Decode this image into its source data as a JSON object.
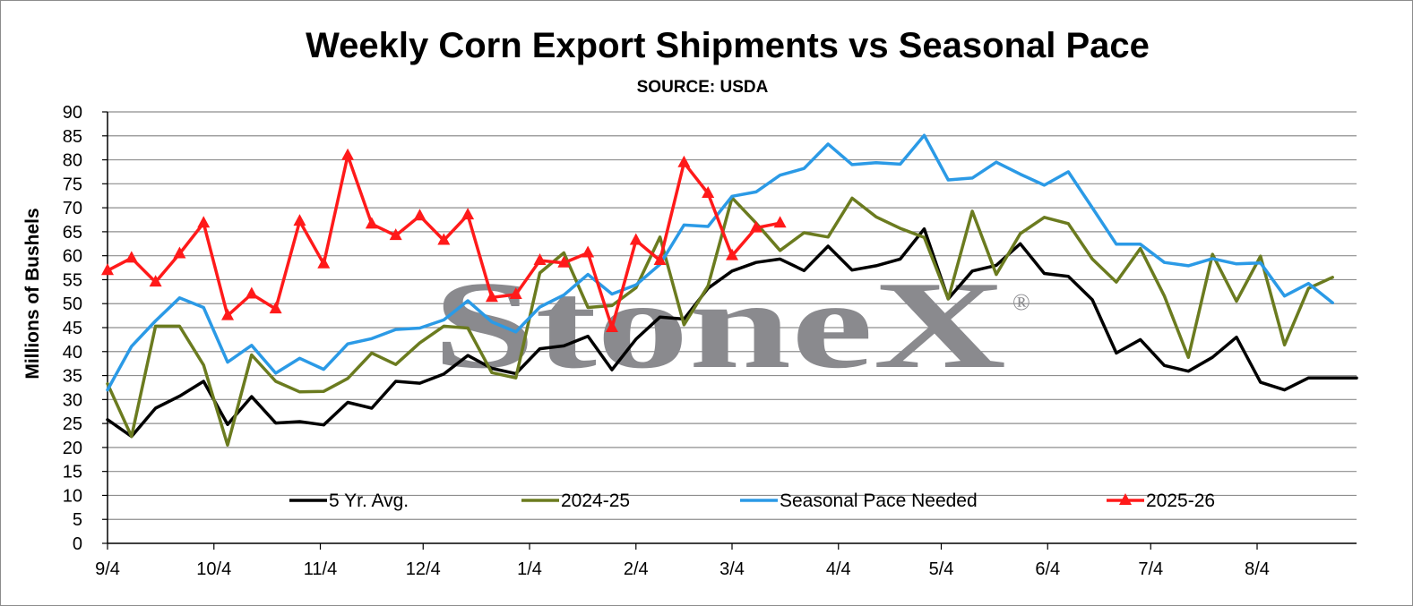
{
  "chart_data": {
    "type": "line",
    "title": "Weekly Corn Export Shipments vs Seasonal Pace",
    "subtitle": "SOURCE: USDA",
    "ylabel": "Millions of Bushels",
    "xlabel": "",
    "ylim": [
      0,
      90
    ],
    "y_ticks": [
      0,
      5,
      10,
      15,
      20,
      25,
      30,
      35,
      40,
      45,
      50,
      55,
      60,
      65,
      70,
      75,
      80,
      85,
      90
    ],
    "x_tick_labels": [
      "9/4",
      "10/4",
      "11/4",
      "12/4",
      "1/4",
      "2/4",
      "3/4",
      "4/4",
      "5/4",
      "6/4",
      "7/4",
      "8/4"
    ],
    "x_tick_weeks": [
      0,
      4.43,
      8.86,
      13.14,
      17.57,
      22.0,
      26.0,
      30.43,
      34.71,
      39.14,
      43.43,
      47.86
    ],
    "grid": true,
    "legend_position": "bottom-inside",
    "watermark": "StoneX",
    "weeks": 53,
    "series": [
      {
        "name": "5 Yr. Avg.",
        "color": "#000000",
        "marker": "none",
        "values": [
          25.8,
          22.3,
          28.2,
          30.7,
          33.8,
          24.8,
          30.6,
          25.1,
          25.4,
          24.7,
          29.4,
          28.2,
          33.8,
          33.4,
          35.3,
          39.2,
          36.5,
          35.4,
          40.6,
          41.2,
          43.2,
          36.2,
          42.6,
          47.2,
          46.8,
          53.2,
          56.8,
          58.6,
          59.3,
          56.9,
          62.0,
          57.0,
          57.9,
          59.3,
          65.6,
          51.0,
          56.8,
          58.0,
          62.5,
          56.3,
          55.7,
          50.8,
          39.7,
          42.5,
          37.1,
          35.9,
          38.8,
          43.0,
          33.6,
          32.0,
          34.5,
          34.5,
          34.5
        ]
      },
      {
        "name": "2024-25",
        "color": "#6b7b1f",
        "marker": "none",
        "values": [
          33.3,
          22.3,
          45.3,
          45.3,
          37.2,
          20.5,
          39.3,
          33.8,
          31.6,
          31.7,
          34.4,
          39.7,
          37.3,
          41.8,
          45.3,
          44.9,
          35.6,
          34.5,
          56.4,
          60.6,
          49.2,
          49.6,
          53.3,
          63.9,
          45.6,
          53.7,
          72.1,
          66.8,
          61.1,
          64.8,
          63.9,
          72.0,
          68.1,
          65.7,
          63.8,
          51.0,
          69.3,
          56.1,
          64.6,
          68.0,
          66.7,
          59.3,
          54.5,
          61.5,
          51.6,
          38.8,
          60.3,
          50.5,
          59.9,
          41.4,
          53.2,
          55.5
        ]
      },
      {
        "name": "Seasonal Pace Needed",
        "color": "#2b9ae6",
        "marker": "none",
        "values": [
          32.0,
          41.1,
          46.4,
          51.2,
          49.2,
          37.8,
          41.3,
          35.5,
          38.6,
          36.3,
          41.6,
          42.7,
          44.6,
          44.9,
          46.6,
          50.6,
          46.2,
          44.1,
          49.3,
          51.8,
          56.1,
          52.0,
          53.9,
          58.2,
          66.4,
          66.1,
          72.4,
          73.3,
          76.8,
          78.2,
          83.3,
          79.0,
          79.4,
          79.1,
          85.1,
          75.8,
          76.2,
          79.5,
          77.0,
          74.7,
          77.5,
          70.0,
          62.4,
          62.4,
          58.6,
          57.9,
          59.4,
          58.3,
          58.5,
          51.6,
          54.2,
          50.2
        ]
      },
      {
        "name": "2025-26",
        "color": "#ff1a1a",
        "marker": "triangle",
        "values": [
          56.9,
          59.5,
          54.5,
          60.4,
          66.8,
          47.5,
          52.0,
          48.9,
          67.2,
          58.3,
          80.9,
          66.6,
          64.2,
          68.3,
          63.2,
          68.5,
          51.3,
          51.9,
          59.0,
          58.5,
          60.6,
          45.0,
          63.2,
          59.0,
          79.4,
          73.0,
          60.0,
          65.8,
          66.8
        ]
      }
    ]
  }
}
